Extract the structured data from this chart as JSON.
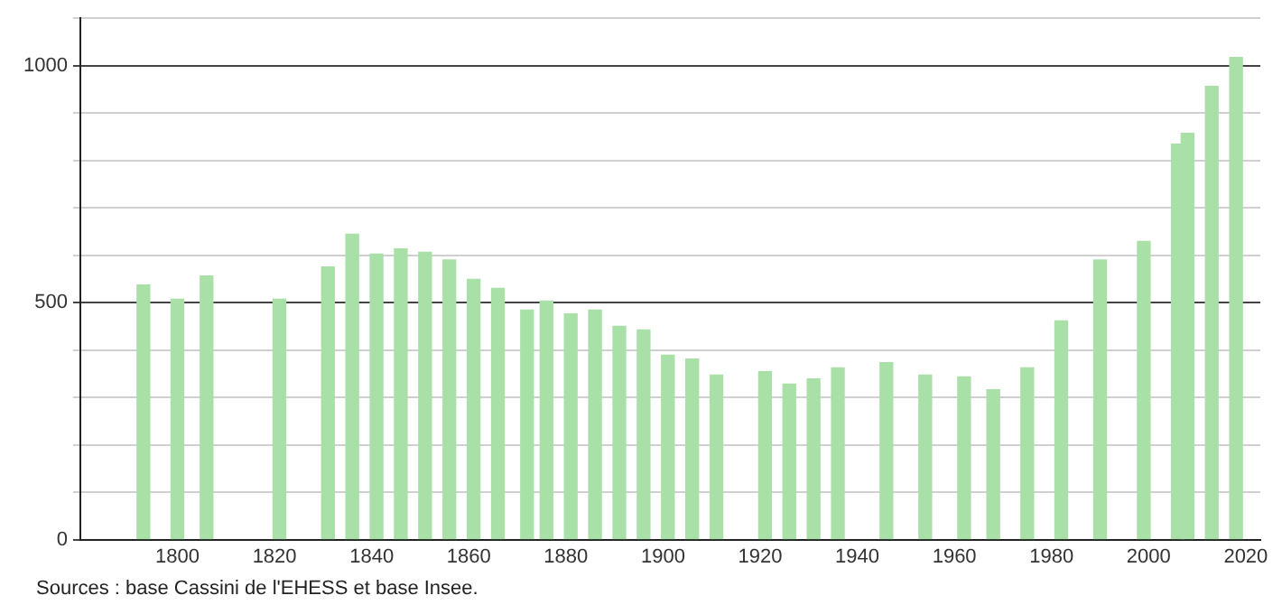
{
  "chart_data": {
    "type": "bar",
    "color": "#a8e0a8",
    "x": [
      1793,
      1800,
      1806,
      1821,
      1831,
      1836,
      1841,
      1846,
      1851,
      1856,
      1861,
      1866,
      1872,
      1876,
      1881,
      1886,
      1891,
      1896,
      1901,
      1906,
      1911,
      1921,
      1926,
      1931,
      1936,
      1946,
      1954,
      1962,
      1968,
      1975,
      1982,
      1990,
      1999,
      2006,
      2008,
      2013,
      2018
    ],
    "values": [
      537,
      507,
      556,
      507,
      575,
      644,
      602,
      613,
      606,
      590,
      549,
      530,
      484,
      503,
      476,
      484,
      450,
      442,
      389,
      381,
      347,
      354,
      328,
      339,
      362,
      373,
      347,
      343,
      316,
      362,
      461,
      590,
      629,
      834,
      857,
      956,
      1017
    ],
    "xlim": [
      1780,
      2023
    ],
    "xticks": [
      1800,
      1820,
      1840,
      1860,
      1880,
      1900,
      1920,
      1940,
      1960,
      1980,
      2000,
      2020
    ],
    "ylim": [
      0,
      1100
    ],
    "yticks": [
      0,
      {
        "value": 100,
        "label": null
      },
      {
        "value": 200,
        "label": null
      },
      {
        "value": 300,
        "label": null
      },
      {
        "value": 400,
        "label": null
      },
      500,
      {
        "value": 600,
        "label": null
      },
      {
        "value": 700,
        "label": null
      },
      {
        "value": 800,
        "label": null
      },
      {
        "value": 900,
        "label": null
      },
      1000,
      {
        "value": 1100,
        "label": null
      }
    ],
    "grid": "y",
    "legend": false,
    "annotations": [
      "Sources : base Cassini de l'EHESS et base Insee."
    ]
  }
}
